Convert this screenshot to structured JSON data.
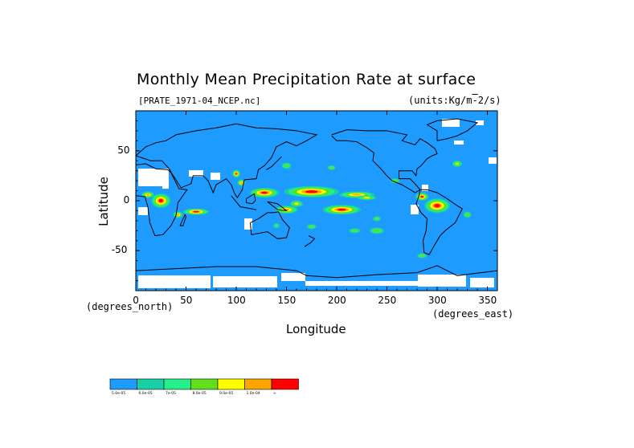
{
  "title": "Monthly Mean Precipitation Rate at surface",
  "subtitle": "[PRATE_1971-04_NCEP.nc]",
  "units": "(units:Kg/m^2/s)",
  "xlabel": "Longitude",
  "ylabel": "Latitude",
  "x_unit": "(degrees_east)",
  "y_unit": "(degrees_north)",
  "x_ticks": [
    "0",
    "50",
    "100",
    "150",
    "200",
    "250",
    "300",
    "350"
  ],
  "y_ticks": [
    "50",
    "0",
    "-50"
  ],
  "colorbar": {
    "colors": [
      "#1e9bff",
      "#19cfa6",
      "#25ef8a",
      "#5fe01a",
      "#ffff00",
      "#ffa500",
      "#ff0000"
    ],
    "labels": [
      "5.0e-05",
      "6.0e-05",
      "7e-05",
      "8.0e-05",
      "9.0e-05",
      "1.0e-04",
      "∞"
    ]
  },
  "colors": {
    "ocean_background": "#1e9bff",
    "missing": "#ffffff",
    "coastline": "#000000"
  },
  "chart_data": {
    "type": "heatmap",
    "title": "Monthly Mean Precipitation Rate at surface",
    "subtitle": "[PRATE_1971-04_NCEP.nc]",
    "units": "(units:Kg/m^2/s)",
    "xlabel": "Longitude",
    "ylabel": "Latitude",
    "xlim": [
      0,
      360
    ],
    "ylim": [
      -90,
      90
    ],
    "x_ticks": [
      0,
      50,
      100,
      150,
      200,
      250,
      300,
      350
    ],
    "y_ticks": [
      50,
      0,
      -50
    ],
    "levels": [
      "5.0e-05",
      "6.0e-05",
      "7e-05",
      "8.0e-05",
      "9.0e-05",
      "1.0e-04"
    ],
    "regions": [
      {
        "lon": 175,
        "lat": 9,
        "level": 6
      },
      {
        "lon": 130,
        "lat": 8,
        "level": 6
      },
      {
        "lon": 205,
        "lat": -9,
        "level": 6
      },
      {
        "lon": 215,
        "lat": 6,
        "level": 6
      },
      {
        "lon": 300,
        "lat": -5,
        "level": 6
      },
      {
        "lon": 285,
        "lat": 4,
        "level": 6
      },
      {
        "lon": 100,
        "lat": 28,
        "level": 6
      },
      {
        "lon": 25,
        "lat": 0,
        "level": 6
      },
      {
        "lon": 60,
        "lat": -11,
        "level": 5
      },
      {
        "lon": 150,
        "lat": -9,
        "level": 5
      },
      {
        "lon": 240,
        "lat": -30,
        "level": 3
      },
      {
        "lon": 320,
        "lat": 37,
        "level": 4
      },
      {
        "lon": 195,
        "lat": 33,
        "level": 3
      }
    ]
  }
}
